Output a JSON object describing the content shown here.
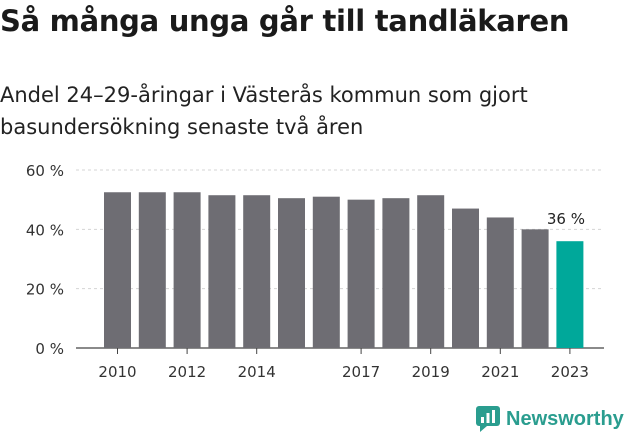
{
  "title": "Så många unga går till tandläkaren",
  "subtitle": "Andel 24–29-åringar i Västerås kommun som gjort basundersökning senaste två åren",
  "brand": "Newsworthy",
  "colors": {
    "bar": "#6e6d73",
    "highlight": "#00a89a",
    "axis": "#444444",
    "brand": "#2a9d8f"
  },
  "chart_data": {
    "type": "bar",
    "title": "Så många unga går till tandläkaren",
    "subtitle": "Andel 24–29-åringar i Västerås kommun som gjort basundersökning senaste två åren",
    "categories": [
      "2010",
      "2011",
      "2012",
      "2013",
      "2014",
      "2015",
      "2016",
      "2017",
      "2018",
      "2019",
      "2020",
      "2021",
      "2022",
      "2023"
    ],
    "values": [
      52.5,
      52.5,
      52.5,
      51.5,
      51.5,
      50.5,
      51,
      50,
      50.5,
      51.5,
      47,
      44,
      40,
      36
    ],
    "x_tick_labels": [
      "2010",
      "2012",
      "2014",
      "2017",
      "2019",
      "2021",
      "2023"
    ],
    "y_ticks": [
      0,
      20,
      40,
      60
    ],
    "y_tick_labels": [
      "0 %",
      "20 %",
      "40 %",
      "60 %"
    ],
    "ylim": [
      0,
      60
    ],
    "highlight_index": 13,
    "annotation": "36 %",
    "grid": true,
    "xlabel": "",
    "ylabel": ""
  }
}
